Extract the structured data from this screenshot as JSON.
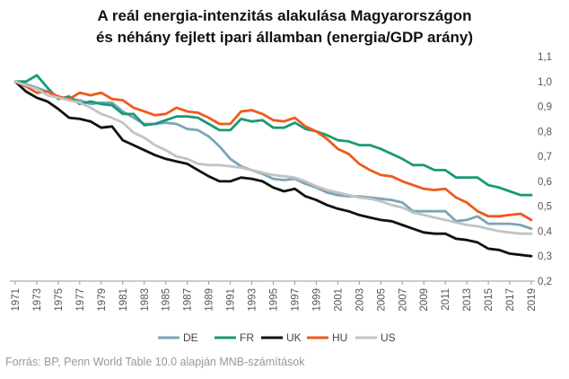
{
  "chart_data": {
    "type": "line",
    "title": [
      "A reál energia-intenzitás alakulása Magyarországon",
      "és néhány fejlett ipari államban (energia/GDP arány)"
    ],
    "xlabel": "",
    "ylabel": "",
    "x": [
      1971,
      1972,
      1973,
      1974,
      1975,
      1976,
      1977,
      1978,
      1979,
      1980,
      1981,
      1982,
      1983,
      1984,
      1985,
      1986,
      1987,
      1988,
      1989,
      1990,
      1991,
      1992,
      1993,
      1994,
      1995,
      1996,
      1997,
      1998,
      1999,
      2000,
      2001,
      2002,
      2003,
      2004,
      2005,
      2006,
      2007,
      2008,
      2009,
      2010,
      2011,
      2012,
      2013,
      2014,
      2015,
      2016,
      2017,
      2018,
      2019
    ],
    "x_tick_labels": [
      "1971",
      "1973",
      "1975",
      "1977",
      "1979",
      "1981",
      "1983",
      "1985",
      "1987",
      "1989",
      "1991",
      "1993",
      "1995",
      "1997",
      "1999",
      "2001",
      "2003",
      "2005",
      "2007",
      "2009",
      "2011",
      "2013",
      "2015",
      "2017",
      "2019"
    ],
    "y_tick_labels": [
      "0,2",
      "0,3",
      "0,4",
      "0,5",
      "0,6",
      "0,7",
      "0,8",
      "0,9",
      "1,0",
      "1,1"
    ],
    "ylim": [
      0.2,
      1.1
    ],
    "grid": false,
    "legend_position": "bottom",
    "series": [
      {
        "name": "DE",
        "color": "#7aa5b8",
        "values": [
          1.0,
          0.99,
          0.975,
          0.96,
          0.935,
          0.93,
          0.925,
          0.91,
          0.915,
          0.915,
          0.88,
          0.855,
          0.83,
          0.83,
          0.835,
          0.83,
          0.81,
          0.805,
          0.78,
          0.74,
          0.69,
          0.66,
          0.645,
          0.63,
          0.61,
          0.605,
          0.61,
          0.59,
          0.575,
          0.555,
          0.545,
          0.54,
          0.54,
          0.535,
          0.53,
          0.525,
          0.515,
          0.48,
          0.48,
          0.48,
          0.48,
          0.44,
          0.445,
          0.46,
          0.43,
          0.43,
          0.43,
          0.425,
          0.41
        ]
      },
      {
        "name": "FR",
        "color": "#1a9a77",
        "values": [
          1.0,
          1.0,
          1.025,
          0.975,
          0.93,
          0.94,
          0.91,
          0.92,
          0.91,
          0.905,
          0.87,
          0.87,
          0.825,
          0.83,
          0.845,
          0.86,
          0.86,
          0.855,
          0.83,
          0.805,
          0.805,
          0.85,
          0.84,
          0.845,
          0.815,
          0.815,
          0.835,
          0.81,
          0.8,
          0.785,
          0.765,
          0.76,
          0.745,
          0.745,
          0.73,
          0.71,
          0.69,
          0.665,
          0.665,
          0.645,
          0.645,
          0.615,
          0.615,
          0.615,
          0.585,
          0.575,
          0.56,
          0.545,
          0.545
        ]
      },
      {
        "name": "UK",
        "color": "#111111",
        "values": [
          1.0,
          0.96,
          0.935,
          0.92,
          0.89,
          0.855,
          0.85,
          0.84,
          0.815,
          0.82,
          0.765,
          0.745,
          0.725,
          0.705,
          0.69,
          0.68,
          0.67,
          0.645,
          0.62,
          0.6,
          0.6,
          0.615,
          0.61,
          0.6,
          0.575,
          0.56,
          0.57,
          0.54,
          0.525,
          0.505,
          0.49,
          0.48,
          0.465,
          0.455,
          0.445,
          0.44,
          0.425,
          0.41,
          0.395,
          0.39,
          0.39,
          0.37,
          0.365,
          0.355,
          0.33,
          0.325,
          0.31,
          0.305,
          0.3
        ]
      },
      {
        "name": "HU",
        "color": "#ee5a1c",
        "values": [
          1.0,
          0.98,
          0.955,
          0.96,
          0.94,
          0.93,
          0.955,
          0.945,
          0.955,
          0.93,
          0.925,
          0.895,
          0.88,
          0.865,
          0.87,
          0.895,
          0.88,
          0.875,
          0.855,
          0.83,
          0.83,
          0.88,
          0.885,
          0.87,
          0.845,
          0.84,
          0.855,
          0.82,
          0.8,
          0.77,
          0.73,
          0.71,
          0.67,
          0.645,
          0.625,
          0.62,
          0.6,
          0.585,
          0.57,
          0.565,
          0.57,
          0.535,
          0.515,
          0.48,
          0.46,
          0.46,
          0.465,
          0.47,
          0.445
        ]
      },
      {
        "name": "US",
        "color": "#c3c3c3",
        "values": [
          1.0,
          0.985,
          0.97,
          0.945,
          0.935,
          0.925,
          0.915,
          0.895,
          0.87,
          0.855,
          0.835,
          0.795,
          0.775,
          0.745,
          0.725,
          0.7,
          0.69,
          0.67,
          0.665,
          0.665,
          0.66,
          0.655,
          0.645,
          0.635,
          0.625,
          0.62,
          0.615,
          0.6,
          0.58,
          0.565,
          0.555,
          0.545,
          0.535,
          0.53,
          0.52,
          0.505,
          0.495,
          0.475,
          0.465,
          0.455,
          0.445,
          0.435,
          0.425,
          0.42,
          0.41,
          0.4,
          0.395,
          0.39,
          0.39
        ]
      }
    ]
  },
  "source_text": "Forrás: BP, Penn World Table 10.0 alapján MNB-számítások"
}
